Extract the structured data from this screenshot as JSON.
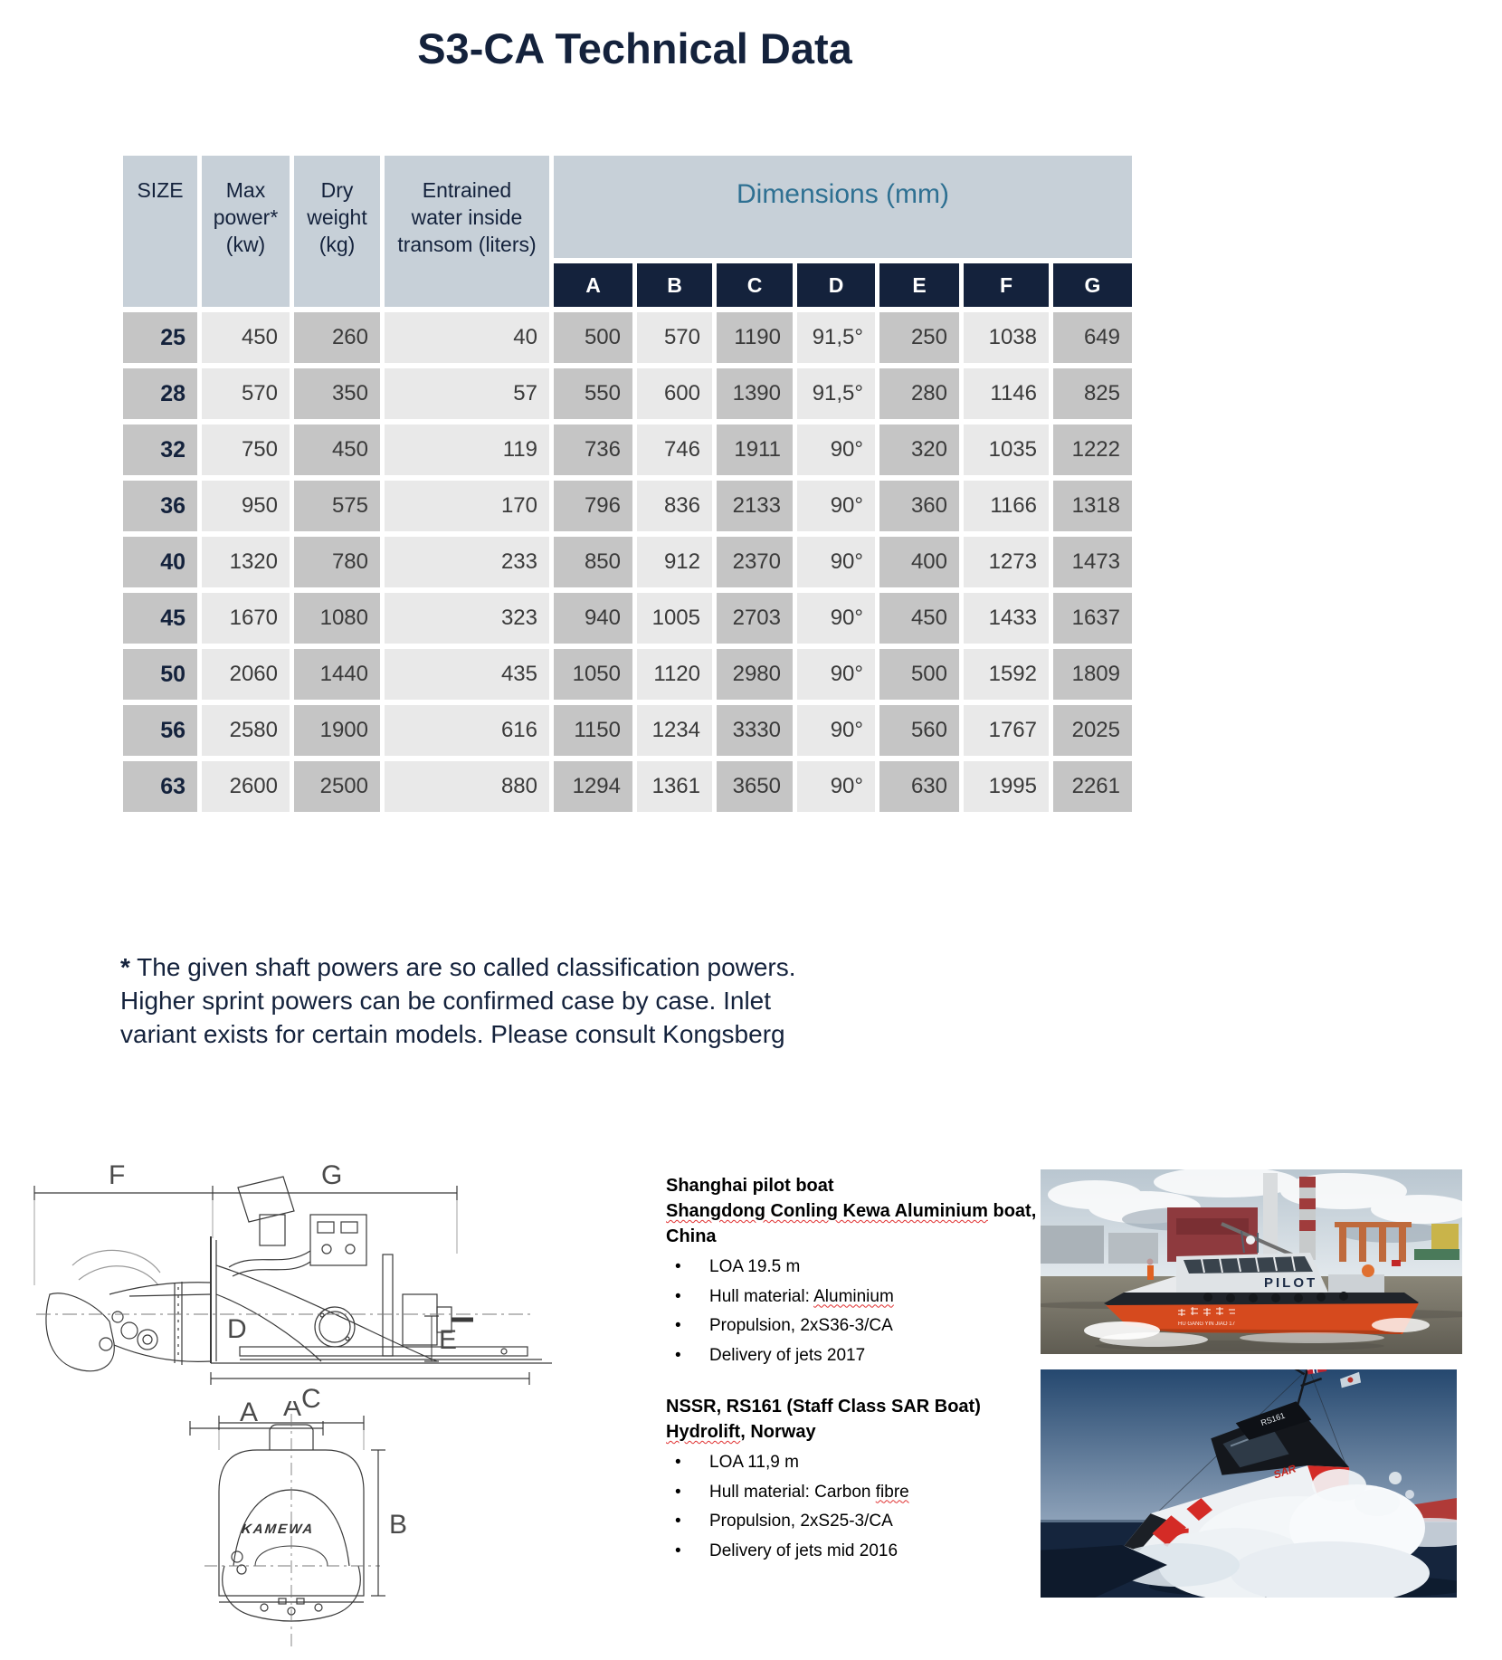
{
  "page_title": "S3-CA Technical Data",
  "colors": {
    "navy": "#14223c",
    "steel_blue": "#2e7092",
    "header_bg": "#c7d0d8",
    "column_dark": "#c5c5c5",
    "column_light": "#e9e9e9",
    "squiggle_red": "#e03030"
  },
  "table": {
    "col_headers": {
      "size": "SIZE",
      "max_power": "Max\npower*\n(kw)",
      "dry_weight": "Dry\nweight\n(kg)",
      "entrained_water": "Entrained\nwater inside\ntransom (liters)",
      "dimensions_group": "Dimensions (mm)"
    },
    "dim_letters": [
      "A",
      "B",
      "C",
      "D",
      "E",
      "F",
      "G"
    ],
    "rows": [
      {
        "size": "25",
        "max_power": "450",
        "dry_weight": "260",
        "entrained_water": "40",
        "A": "500",
        "B": "570",
        "C": "1190",
        "D": "91,5°",
        "E": "250",
        "F": "1038",
        "G": "649"
      },
      {
        "size": "28",
        "max_power": "570",
        "dry_weight": "350",
        "entrained_water": "57",
        "A": "550",
        "B": "600",
        "C": "1390",
        "D": "91,5°",
        "E": "280",
        "F": "1146",
        "G": "825"
      },
      {
        "size": "32",
        "max_power": "750",
        "dry_weight": "450",
        "entrained_water": "119",
        "A": "736",
        "B": "746",
        "C": "1911",
        "D": "90°",
        "E": "320",
        "F": "1035",
        "G": "1222"
      },
      {
        "size": "36",
        "max_power": "950",
        "dry_weight": "575",
        "entrained_water": "170",
        "A": "796",
        "B": "836",
        "C": "2133",
        "D": "90°",
        "E": "360",
        "F": "1166",
        "G": "1318"
      },
      {
        "size": "40",
        "max_power": "1320",
        "dry_weight": "780",
        "entrained_water": "233",
        "A": "850",
        "B": "912",
        "C": "2370",
        "D": "90°",
        "E": "400",
        "F": "1273",
        "G": "1473"
      },
      {
        "size": "45",
        "max_power": "1670",
        "dry_weight": "1080",
        "entrained_water": "323",
        "A": "940",
        "B": "1005",
        "C": "2703",
        "D": "90°",
        "E": "450",
        "F": "1433",
        "G": "1637"
      },
      {
        "size": "50",
        "max_power": "2060",
        "dry_weight": "1440",
        "entrained_water": "435",
        "A": "1050",
        "B": "1120",
        "C": "2980",
        "D": "90°",
        "E": "500",
        "F": "1592",
        "G": "1809"
      },
      {
        "size": "56",
        "max_power": "2580",
        "dry_weight": "1900",
        "entrained_water": "616",
        "A": "1150",
        "B": "1234",
        "C": "3330",
        "D": "90°",
        "E": "560",
        "F": "1767",
        "G": "2025"
      },
      {
        "size": "63",
        "max_power": "2600",
        "dry_weight": "2500",
        "entrained_water": "880",
        "A": "1294",
        "B": "1361",
        "C": "3650",
        "D": "90°",
        "E": "630",
        "F": "1995",
        "G": "2261"
      }
    ]
  },
  "footnote": {
    "star": "*",
    "text": " The given shaft powers are so called classification powers. Higher sprint powers can be confirmed case by case.  Inlet variant exists for certain models. Please consult Kongsberg"
  },
  "drawing": {
    "brand": "KAMEWA"
  },
  "boat1": {
    "title1": "Shanghai pilot boat",
    "title2_underlined": "Shangdong Conling Kewa Aluminium",
    "title2_rest": " boat, China",
    "bullet_glyph": "•",
    "b1": "LOA 19.5 m",
    "b2_pre": "Hull material: ",
    "b2_underlined": "Aluminium",
    "b3": "Propulsion, 2xS36-3/CA",
    "b4": "Delivery of jets  2017"
  },
  "boat2": {
    "title1": "NSSR, RS161 (Staff Class SAR Boat)",
    "title2_underlined": "Hydrolift",
    "title2_rest": ", Norway",
    "bullet_glyph": "•",
    "b1": "LOA 11,9 m",
    "b2_pre": "Hull material: Carbon ",
    "b2_underlined": "fibre",
    "b3": "Propulsion, 2xS25-3/CA",
    "b4": "Delivery of jets mid 2016"
  },
  "photos": {
    "pilot": {
      "deck_label": "PILOT",
      "hull_subtext": "HU GANG YIN JIAO 17"
    },
    "sar": {
      "roof_label": "RS161",
      "bow_label": "RS",
      "side_label": "SAR"
    }
  }
}
